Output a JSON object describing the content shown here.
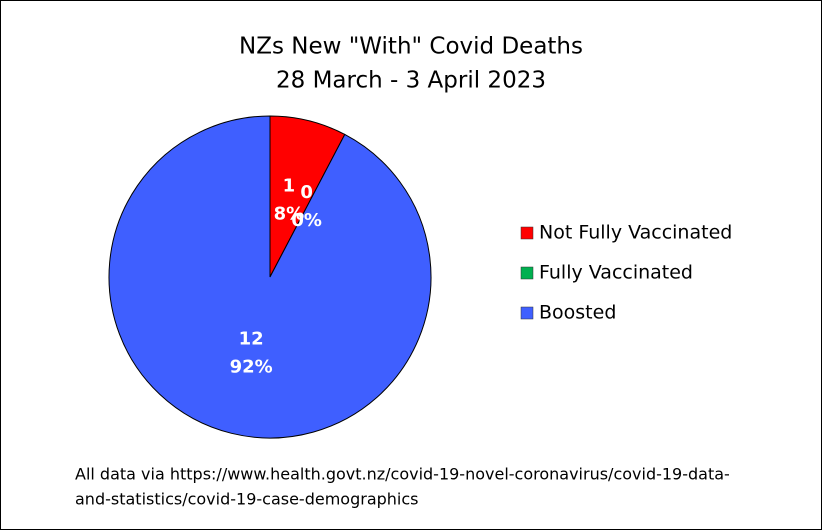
{
  "chart_data": {
    "type": "pie",
    "title": [
      "NZs New \"With\" Covid Deaths",
      "28 March - 3 April 2023"
    ],
    "categories": [
      "Not Fully Vaccinated",
      "Fully Vaccinated",
      "Boosted"
    ],
    "values": [
      1,
      0,
      12
    ],
    "percent_labels": [
      "8%",
      "0%",
      "92%"
    ],
    "colors": [
      "#ff0000",
      "#00b050",
      "#3f5fff"
    ],
    "legend": "right",
    "footnote": [
      "All data via https://www.health.govt.nz/covid-19-novel-coronavirus/covid-19-data-",
      "and-statistics/covid-19-case-demographics"
    ]
  }
}
